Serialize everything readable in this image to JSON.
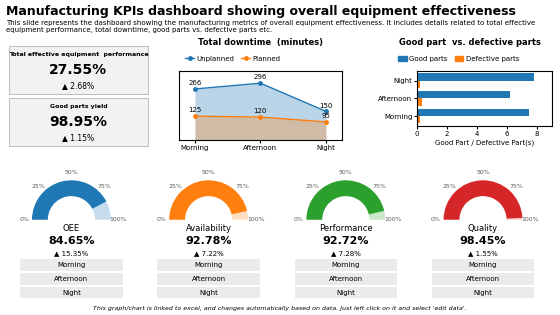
{
  "title": "Manufacturing KPIs dashboard showing overall equipment effectiveness",
  "subtitle": "This slide represents the dashboard showing the manufacturing metrics of overall equipment effectiveness. It includes details related to total effective equipment performance, total downtime, good parts vs. defective parts etc.",
  "footer": "This graph/chart is linked to excel, and changes automatically based on data. Just left click on it and select 'edit data'.",
  "chart_data": [
    {
      "type": "kpi",
      "title": "Total effective equipment  performance",
      "value_label": "27.55%",
      "change_label": "▲ 2.68%"
    },
    {
      "type": "kpi",
      "title": "Good parts yield",
      "value_label": "98.95%",
      "change_label": "▲ 1.15%"
    },
    {
      "type": "area",
      "title": "Total downtime  (minutes)",
      "categories": [
        "Morning",
        "Afternoon",
        "Night"
      ],
      "series": [
        {
          "name": "Unplanned",
          "values": [
            266,
            296,
            150
          ]
        },
        {
          "name": "Planned",
          "values": [
            125,
            120,
            95
          ]
        }
      ],
      "ylim": [
        0,
        360
      ],
      "data_labels": true,
      "tick_labels": "x",
      "legend": "upper left"
    },
    {
      "type": "bar",
      "orientation": "horizontal",
      "title": "Good part  vs. defective parts",
      "categories": [
        "Morning",
        "Afternoon",
        "Night"
      ],
      "series": [
        {
          "name": "Good parts",
          "values": [
            7.5,
            6.2,
            7.8
          ]
        },
        {
          "name": "Defective parts",
          "values": [
            0.2,
            0.3,
            0.2
          ]
        }
      ],
      "x_label": "Good Part / Defective Part(s)",
      "xlim": [
        0,
        9
      ],
      "xticks": [
        0,
        2,
        4,
        6,
        8
      ],
      "legend": "upper left"
    },
    {
      "type": "gauge",
      "title": "OEE",
      "value": 84.65,
      "value_label": "84.65%",
      "change_label": "▲ 15.35%",
      "ylim": [
        0,
        100
      ],
      "yticks": [
        {
          "value": 0,
          "label": "0%"
        },
        {
          "value": 25,
          "label": "25%"
        },
        {
          "value": 50,
          "label": "50%"
        },
        {
          "value": 75,
          "label": "75%"
        },
        {
          "value": 100,
          "label": "100%"
        }
      ],
      "rows": [
        "Morning",
        "Afternoon",
        "Night"
      ]
    },
    {
      "type": "gauge",
      "title": "Availability",
      "value": 92.78,
      "value_label": "92.78%",
      "change_label": "▲ 7.22%",
      "ylim": [
        0,
        100
      ],
      "yticks": [
        {
          "value": 0,
          "label": "0%"
        },
        {
          "value": 25,
          "label": "25%"
        },
        {
          "value": 50,
          "label": "50%"
        },
        {
          "value": 75,
          "label": "75%"
        },
        {
          "value": 100,
          "label": "100%"
        }
      ],
      "rows": [
        "Morning",
        "Afternoon",
        "Night"
      ]
    },
    {
      "type": "gauge",
      "title": "Performance",
      "value": 92.72,
      "value_label": "92.72%",
      "change_label": "▲ 7.28%",
      "ylim": [
        0,
        100
      ],
      "yticks": [
        {
          "value": 0,
          "label": "0%"
        },
        {
          "value": 25,
          "label": "25%"
        },
        {
          "value": 50,
          "label": "50%"
        },
        {
          "value": 75,
          "label": "75%"
        },
        {
          "value": 100,
          "label": "100%"
        }
      ],
      "rows": [
        "Morning",
        "Afternoon",
        "Night"
      ]
    },
    {
      "type": "gauge",
      "title": "Quality",
      "value": 98.45,
      "value_label": "98.45%",
      "change_label": "▲ 1.55%",
      "ylim": [
        0,
        100
      ],
      "yticks": [
        {
          "value": 0,
          "label": "0%"
        },
        {
          "value": 25,
          "label": "25%"
        },
        {
          "value": 50,
          "label": "50%"
        },
        {
          "value": 75,
          "label": "75%"
        },
        {
          "value": 100,
          "label": "100%"
        }
      ],
      "rows": [
        "Morning",
        "Afternoon",
        "Night"
      ]
    }
  ]
}
